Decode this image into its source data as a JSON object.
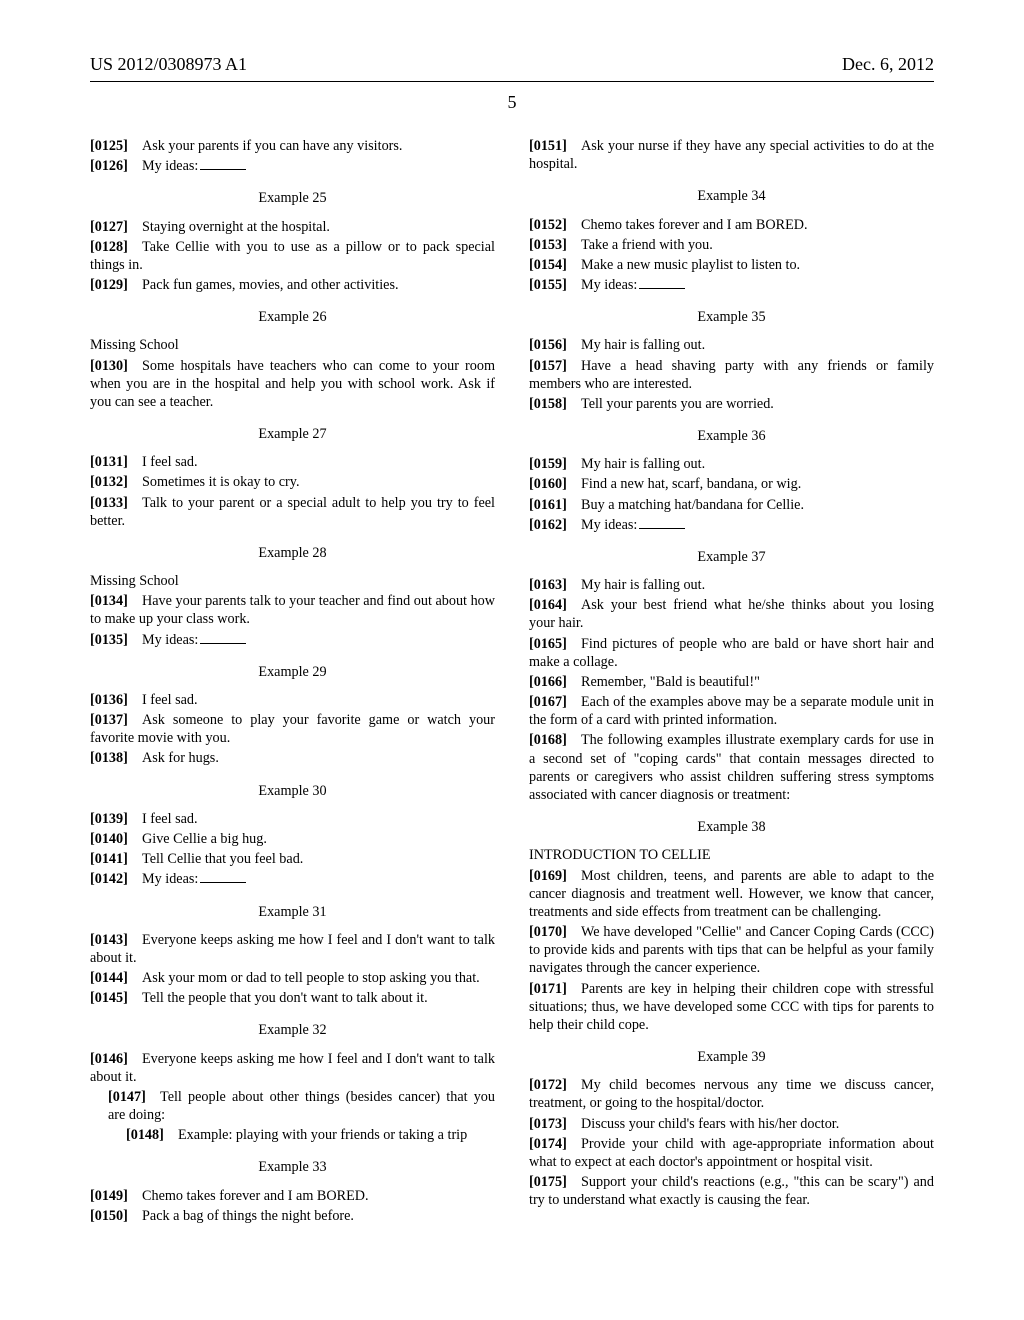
{
  "header": {
    "pub_number": "US 2012/0308973 A1",
    "date": "Dec. 6, 2012"
  },
  "page_number": "5",
  "left": [
    {
      "type": "entry",
      "num": "[0125]",
      "txt": "Ask your parents if you can have any visitors."
    },
    {
      "type": "entry",
      "num": "[0126]",
      "txt": "My ideas:",
      "blank": true
    },
    {
      "type": "example",
      "txt": "Example 25"
    },
    {
      "type": "entry",
      "num": "[0127]",
      "txt": "Staying overnight at the hospital."
    },
    {
      "type": "entry",
      "num": "[0128]",
      "txt": "Take Cellie with you to use as a pillow or to pack special things in."
    },
    {
      "type": "entry",
      "num": "[0129]",
      "txt": "Pack fun games, movies, and other activities."
    },
    {
      "type": "example",
      "txt": "Example 26"
    },
    {
      "type": "label",
      "txt": "Missing School"
    },
    {
      "type": "entry",
      "num": "[0130]",
      "txt": "Some hospitals have teachers who can come to your room when you are in the hospital and help you with school work. Ask if you can see a teacher."
    },
    {
      "type": "example",
      "txt": "Example 27"
    },
    {
      "type": "entry",
      "num": "[0131]",
      "txt": "I feel sad."
    },
    {
      "type": "entry",
      "num": "[0132]",
      "txt": "Sometimes it is okay to cry."
    },
    {
      "type": "entry",
      "num": "[0133]",
      "txt": "Talk to your parent or a special adult to help you try to feel better."
    },
    {
      "type": "example",
      "txt": "Example 28"
    },
    {
      "type": "label",
      "txt": "Missing School"
    },
    {
      "type": "entry",
      "num": "[0134]",
      "txt": "Have your parents talk to your teacher and find out about how to make up your class work."
    },
    {
      "type": "entry",
      "num": "[0135]",
      "txt": "My ideas:",
      "blank": true
    },
    {
      "type": "example",
      "txt": "Example 29"
    },
    {
      "type": "entry",
      "num": "[0136]",
      "txt": "I feel sad."
    },
    {
      "type": "entry",
      "num": "[0137]",
      "txt": "Ask someone to play your favorite game or watch your favorite movie with you."
    },
    {
      "type": "entry",
      "num": "[0138]",
      "txt": "Ask for hugs."
    },
    {
      "type": "example",
      "txt": "Example 30"
    },
    {
      "type": "entry",
      "num": "[0139]",
      "txt": "I feel sad."
    },
    {
      "type": "entry",
      "num": "[0140]",
      "txt": "Give Cellie a big hug."
    },
    {
      "type": "entry",
      "num": "[0141]",
      "txt": "Tell Cellie that you feel bad."
    },
    {
      "type": "entry",
      "num": "[0142]",
      "txt": "My ideas:",
      "blank": true
    },
    {
      "type": "example",
      "txt": "Example 31"
    },
    {
      "type": "entry",
      "num": "[0143]",
      "txt": "Everyone keeps asking me how I feel and I don't want to talk about it."
    },
    {
      "type": "entry",
      "num": "[0144]",
      "txt": "Ask your mom or dad to tell people to stop asking you that."
    },
    {
      "type": "entry",
      "num": "[0145]",
      "txt": "Tell the people that you don't want to talk about it."
    },
    {
      "type": "example",
      "txt": "Example 32"
    },
    {
      "type": "entry",
      "num": "[0146]",
      "txt": "Everyone keeps asking me how I feel and I don't want to talk about it."
    },
    {
      "type": "entry",
      "num": "[0147]",
      "txt": "Tell people about other things (besides cancer) that you are doing:",
      "indent": 1
    },
    {
      "type": "entry",
      "num": "[0148]",
      "txt": "Example: playing with your friends or taking a trip",
      "indent": 2
    },
    {
      "type": "example",
      "txt": "Example 33"
    },
    {
      "type": "entry",
      "num": "[0149]",
      "txt": "Chemo takes forever and I am BORED."
    },
    {
      "type": "entry",
      "num": "[0150]",
      "txt": "Pack a bag of things the night before."
    }
  ],
  "right": [
    {
      "type": "entry",
      "num": "[0151]",
      "txt": "Ask your nurse if they have any special activities to do at the hospital."
    },
    {
      "type": "example",
      "txt": "Example 34"
    },
    {
      "type": "entry",
      "num": "[0152]",
      "txt": "Chemo takes forever and I am BORED."
    },
    {
      "type": "entry",
      "num": "[0153]",
      "txt": "Take a friend with you."
    },
    {
      "type": "entry",
      "num": "[0154]",
      "txt": "Make a new music playlist to listen to."
    },
    {
      "type": "entry",
      "num": "[0155]",
      "txt": "My ideas:",
      "blank": true
    },
    {
      "type": "example",
      "txt": "Example 35"
    },
    {
      "type": "entry",
      "num": "[0156]",
      "txt": "My hair is falling out."
    },
    {
      "type": "entry",
      "num": "[0157]",
      "txt": "Have a head shaving party with any friends or family members who are interested."
    },
    {
      "type": "entry",
      "num": "[0158]",
      "txt": "Tell your parents you are worried."
    },
    {
      "type": "example",
      "txt": "Example 36"
    },
    {
      "type": "entry",
      "num": "[0159]",
      "txt": "My hair is falling out."
    },
    {
      "type": "entry",
      "num": "[0160]",
      "txt": "Find a new hat, scarf, bandana, or wig."
    },
    {
      "type": "entry",
      "num": "[0161]",
      "txt": "Buy a matching hat/bandana for Cellie."
    },
    {
      "type": "entry",
      "num": "[0162]",
      "txt": "My ideas:",
      "blank": true
    },
    {
      "type": "example",
      "txt": "Example 37"
    },
    {
      "type": "entry",
      "num": "[0163]",
      "txt": "My hair is falling out."
    },
    {
      "type": "entry",
      "num": "[0164]",
      "txt": "Ask your best friend what he/she thinks about you losing your hair."
    },
    {
      "type": "entry",
      "num": "[0165]",
      "txt": "Find pictures of people who are bald or have short hair and make a collage."
    },
    {
      "type": "entry",
      "num": "[0166]",
      "txt": "Remember, \"Bald is beautiful!\""
    },
    {
      "type": "entry",
      "num": "[0167]",
      "txt": "Each of the examples above may be a separate module unit in the form of a card with printed information."
    },
    {
      "type": "entry",
      "num": "[0168]",
      "txt": "The following examples illustrate exemplary cards for use in a second set of \"coping cards\" that contain messages directed to parents or caregivers who assist children suffering stress symptoms associated with cancer diagnosis or treatment:"
    },
    {
      "type": "example",
      "txt": "Example 38"
    },
    {
      "type": "label",
      "txt": "INTRODUCTION TO CELLIE"
    },
    {
      "type": "entry",
      "num": "[0169]",
      "txt": "Most children, teens, and parents are able to adapt to the cancer diagnosis and treatment well. However, we know that cancer, treatments and side effects from treatment can be challenging."
    },
    {
      "type": "entry",
      "num": "[0170]",
      "txt": "We have developed \"Cellie\" and Cancer Coping Cards (CCC) to provide kids and parents with tips that can be helpful as your family navigates through the cancer experience."
    },
    {
      "type": "entry",
      "num": "[0171]",
      "txt": "Parents are key in helping their children cope with stressful situations; thus, we have developed some CCC with tips for parents to help their child cope."
    },
    {
      "type": "example",
      "txt": "Example 39"
    },
    {
      "type": "entry",
      "num": "[0172]",
      "txt": "My child becomes nervous any time we discuss cancer, treatment, or going to the hospital/doctor."
    },
    {
      "type": "entry",
      "num": "[0173]",
      "txt": "Discuss your child's fears with his/her doctor."
    },
    {
      "type": "entry",
      "num": "[0174]",
      "txt": "Provide your child with age-appropriate information about what to expect at each doctor's appointment or hospital visit."
    },
    {
      "type": "entry",
      "num": "[0175]",
      "txt": "Support your child's reactions (e.g., \"this can be scary\") and try to understand what exactly is causing the fear."
    }
  ]
}
